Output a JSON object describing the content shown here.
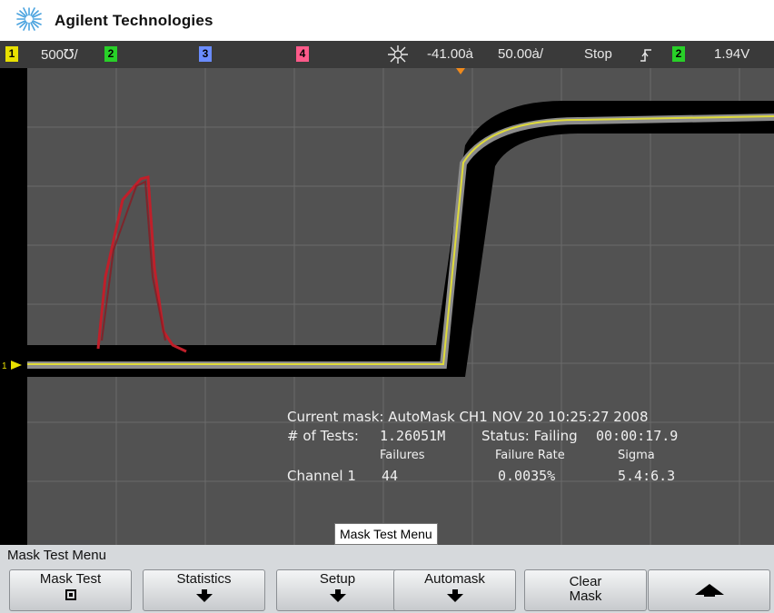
{
  "brand": {
    "name": "Agilent Technologies",
    "logo_icon": "agilent-spark-icon"
  },
  "status_bar": {
    "ch1": {
      "number": "1",
      "scale": "500℧/",
      "color": "#e8e000"
    },
    "ch2": {
      "number": "2",
      "color": "#28d028"
    },
    "ch3": {
      "number": "3",
      "color": "#6a8cff"
    },
    "ch4": {
      "number": "4",
      "color": "#ff5a8a"
    },
    "trigger_icon": "sun-icon",
    "time_offset": "-41.00ẚ",
    "timebase": "50.00ẚ/",
    "run_state": "Stop",
    "edge_icon": "rising-edge-icon",
    "trigger_source": "2",
    "trigger_level": "1.94V"
  },
  "screen": {
    "mask_readout": {
      "current_mask": "Current mask: AutoMask CH1 NOV 20 10:25:27 2008",
      "tests_label": "# of Tests:",
      "tests_value": "1.26051M",
      "status": "Status: Failing",
      "elapsed": "00:00:17.9",
      "failures_header": "Failures",
      "failure_rate_header": "Failure Rate",
      "sigma_header": "Sigma",
      "channel_label": "Channel 1",
      "failures_value": "44",
      "failure_rate_value": "0.0035%",
      "sigma_value": "5.4:6.3"
    },
    "menu_tag": "Mask Test Menu",
    "ground_marker": "1",
    "colors": {
      "trace": "#e0dc3a",
      "mask": "#000000",
      "grid_bg": "#525252",
      "failure": "#c01f2a"
    }
  },
  "softkeys": {
    "menu_title": "Mask Test Menu",
    "keys": [
      {
        "label": "Mask Test",
        "indicator": "checkbox"
      },
      {
        "label": "Statistics",
        "icon": "arrow-down-icon"
      },
      {
        "label": "Setup",
        "icon": "arrow-down-icon"
      },
      {
        "label": "Automask",
        "icon": "arrow-down-icon"
      },
      {
        "label_line1": "Clear",
        "label_line2": "Mask"
      },
      {
        "icon": "arrow-up-icon"
      }
    ]
  }
}
